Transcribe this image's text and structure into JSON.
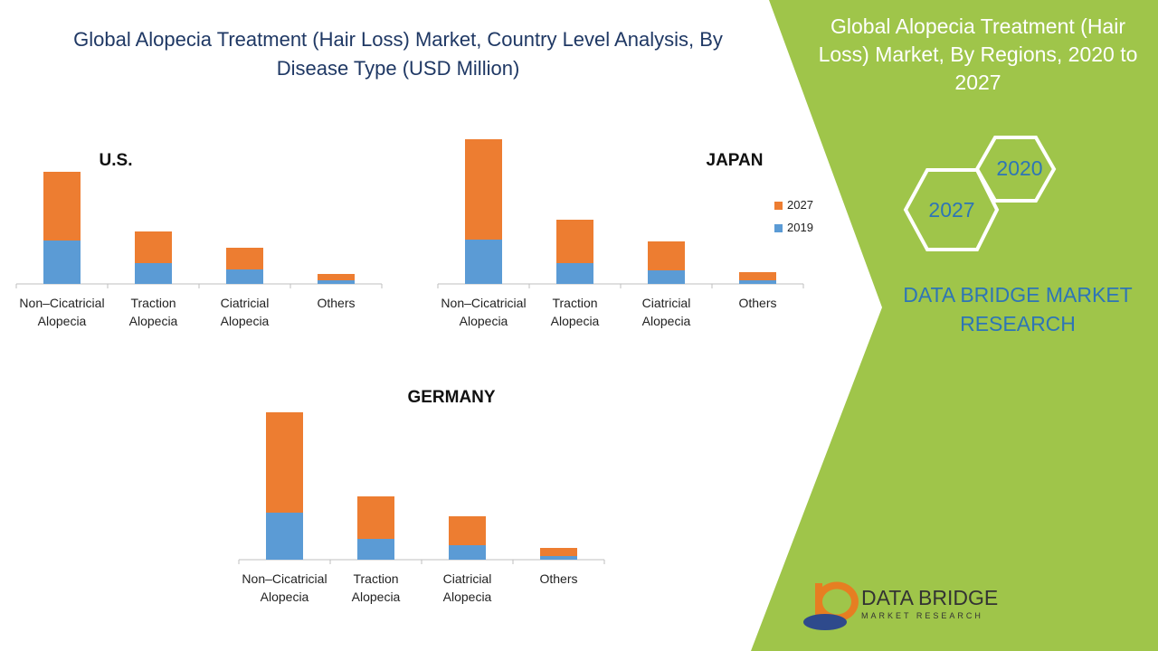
{
  "title": "Global Alopecia Treatment (Hair Loss) Market, Country Level Analysis, By Disease Type (USD Million)",
  "side_panel": {
    "title": "Global Alopecia Treatment (Hair Loss) Market, By Regions, 2020 to 2027",
    "hex_top": "2020",
    "hex_bottom": "2027",
    "brand": "DATA BRIDGE MARKET RESEARCH"
  },
  "logo": {
    "name": "DATA BRIDGE",
    "tagline": "MARKET RESEARCH"
  },
  "chart_data": [
    {
      "type": "bar",
      "stacked": true,
      "title": "U.S.",
      "categories": [
        "Non–Cicatricial Alopecia",
        "Traction Alopecia",
        "Ciatricial Alopecia",
        "Others"
      ],
      "series": [
        {
          "name": "2019",
          "color": "#5b9bd5",
          "values": [
            48,
            23,
            16,
            4
          ]
        },
        {
          "name": "2027",
          "color": "#ed7d31",
          "values": [
            76,
            35,
            24,
            7
          ]
        }
      ]
    },
    {
      "type": "bar",
      "stacked": true,
      "title": "JAPAN",
      "legend": "right",
      "categories": [
        "Non–Cicatricial Alopecia",
        "Traction Alopecia",
        "Ciatricial Alopecia",
        "Others"
      ],
      "series": [
        {
          "name": "2019",
          "color": "#5b9bd5",
          "values": [
            49,
            23,
            15,
            4
          ]
        },
        {
          "name": "2027",
          "color": "#ed7d31",
          "values": [
            111,
            48,
            32,
            9
          ]
        }
      ]
    },
    {
      "type": "bar",
      "stacked": true,
      "title": "GERMANY",
      "categories": [
        "Non–Cicatricial Alopecia",
        "Traction Alopecia",
        "Ciatricial Alopecia",
        "Others"
      ],
      "series": [
        {
          "name": "2019",
          "color": "#5b9bd5",
          "values": [
            52,
            23,
            16,
            4
          ]
        },
        {
          "name": "2027",
          "color": "#ed7d31",
          "values": [
            111,
            47,
            32,
            9
          ]
        }
      ]
    }
  ]
}
